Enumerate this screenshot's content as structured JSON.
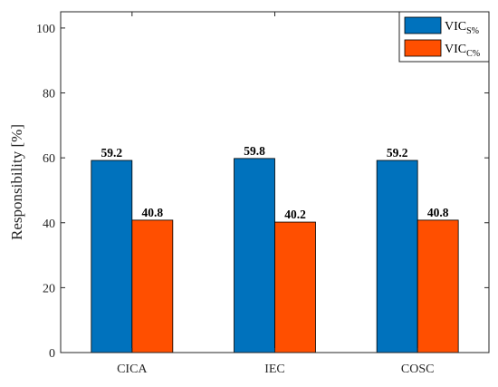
{
  "chart_data": {
    "type": "bar",
    "categories": [
      "CICA",
      "IEC",
      "COSC"
    ],
    "series": [
      {
        "name": "VIC",
        "name_sub": "S%",
        "color": "#0072BD",
        "values": [
          59.2,
          59.8,
          59.2
        ]
      },
      {
        "name": "VIC",
        "name_sub": "C%",
        "color": "#FF4F00",
        "values": [
          40.8,
          40.2,
          40.8
        ]
      }
    ],
    "data_labels": [
      [
        "59.2",
        "59.8",
        "59.2"
      ],
      [
        "40.8",
        "40.2",
        "40.8"
      ]
    ],
    "xlabel": "",
    "ylabel": "Responsibility [%]",
    "ylim": [
      0,
      105
    ],
    "yticks": [
      0,
      20,
      40,
      60,
      80,
      100
    ],
    "ytick_labels": [
      "0",
      "20",
      "40",
      "60",
      "80",
      "100"
    ],
    "grid": false,
    "legend_position": "top-right"
  }
}
